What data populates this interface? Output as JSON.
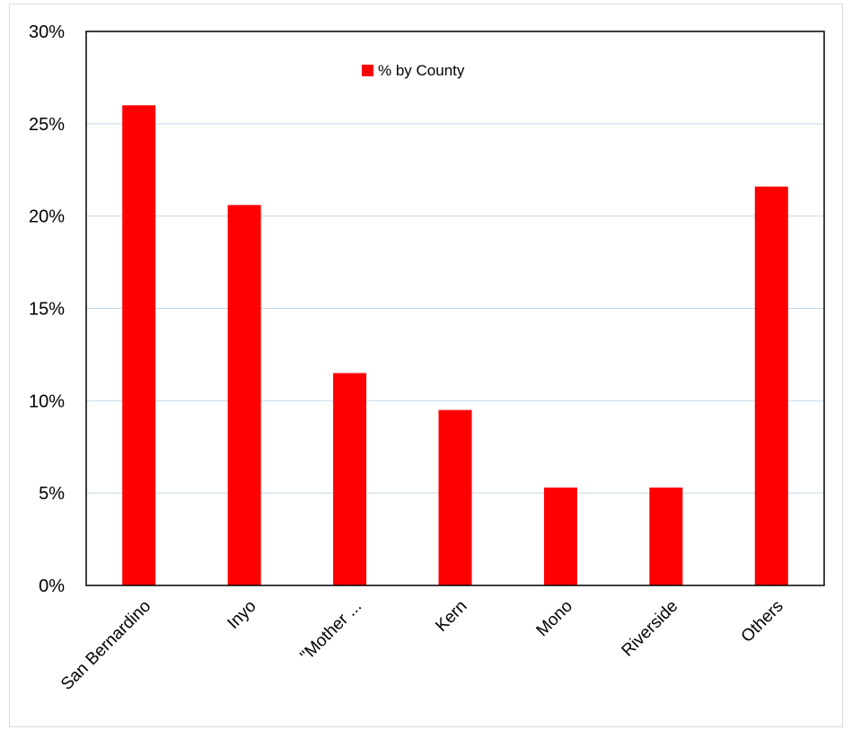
{
  "chart_data": {
    "type": "bar",
    "categories": [
      "San Bernardino",
      "Inyo",
      "\"Mother ...",
      "Kern",
      "Mono",
      "Riverside",
      "Others"
    ],
    "series": [
      {
        "name": "% by County",
        "values": [
          26.0,
          20.6,
          11.5,
          9.5,
          5.3,
          5.3,
          21.6
        ],
        "color": "#ff0000"
      }
    ],
    "ylim": [
      0,
      30
    ],
    "ytick_values": [
      0,
      5,
      10,
      15,
      20,
      25,
      30
    ],
    "ytick_labels": [
      "0%",
      "5%",
      "10%",
      "15%",
      "20%",
      "25%",
      "30%"
    ],
    "grid": true,
    "gridline_color": "#c5d9ea",
    "legend_position": "top-center",
    "title": "",
    "xlabel": "",
    "ylabel": ""
  }
}
